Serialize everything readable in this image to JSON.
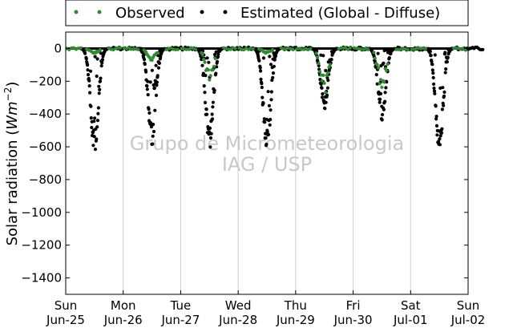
{
  "chart_data": {
    "type": "scatter",
    "title": "",
    "xlabel": "",
    "ylabel": "Solar radiation",
    "ylabel_unit_base": "Wm",
    "ylabel_unit_exp": "−2",
    "ylim": [
      -1500,
      100
    ],
    "xlim": [
      0,
      7
    ],
    "grid": "vertical",
    "legend_position": "top",
    "x_ticks": [
      {
        "day": "Sun",
        "date": "Jun-25"
      },
      {
        "day": "Mon",
        "date": "Jun-26"
      },
      {
        "day": "Tue",
        "date": "Jun-27"
      },
      {
        "day": "Wed",
        "date": "Jun-28"
      },
      {
        "day": "Thu",
        "date": "Jun-29"
      },
      {
        "day": "Fri",
        "date": "Jun-30"
      },
      {
        "day": "Sat",
        "date": "Jul-01"
      },
      {
        "day": "Sun",
        "date": "Jul-02"
      }
    ],
    "y_ticks": [
      "0",
      "−200",
      "−400",
      "−600",
      "−800",
      "−1000",
      "−1200",
      "−1400"
    ],
    "y_tick_values": [
      0,
      -200,
      -400,
      -600,
      -800,
      -1000,
      -1200,
      -1400
    ],
    "series": [
      {
        "name": "Observed",
        "color": "#2e8b2e"
      },
      {
        "name": "Estimated (Global - Diffuse)",
        "color": "#000000"
      }
    ],
    "daily_minimum_estimated": [
      {
        "date": "Jun-25",
        "value": -565
      },
      {
        "date": "Jun-26",
        "value": -530
      },
      {
        "date": "Jun-27",
        "value": -550
      },
      {
        "date": "Jun-28",
        "value": -560
      },
      {
        "date": "Jun-29",
        "value": -330
      },
      {
        "date": "Jun-30",
        "value": -390
      },
      {
        "date": "Jul-01",
        "value": -565
      }
    ],
    "daily_minimum_observed": [
      {
        "date": "Jun-25",
        "value": -30
      },
      {
        "date": "Jun-26",
        "value": -80
      },
      {
        "date": "Jun-27",
        "value": -210
      },
      {
        "date": "Jun-28",
        "value": -30
      },
      {
        "date": "Jun-29",
        "value": -280
      },
      {
        "date": "Jun-30",
        "value": -265
      },
      {
        "date": "Jul-01",
        "value": 0
      }
    ]
  },
  "watermark": {
    "line1": "Grupo de Micrometeorologia",
    "line2": "IAG / USP"
  }
}
